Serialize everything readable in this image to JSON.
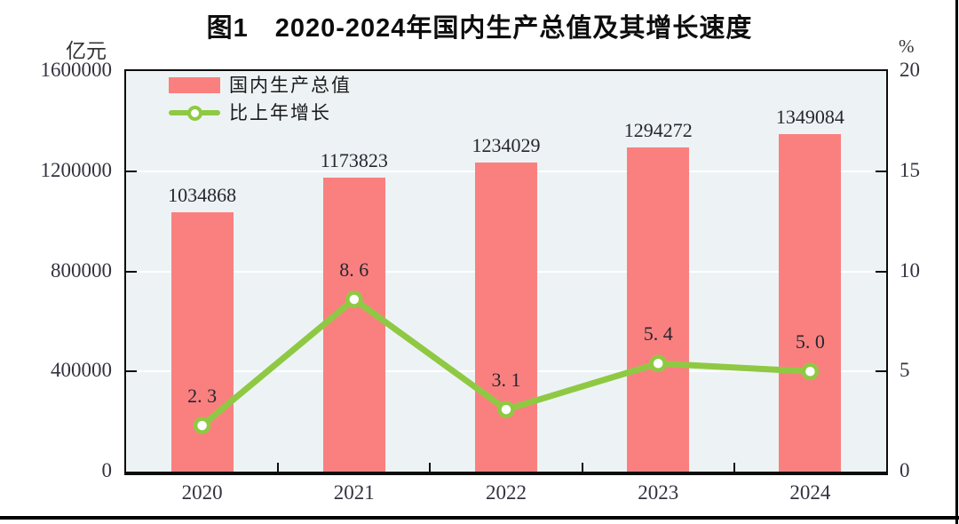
{
  "figure": {
    "title": "图1　2020-2024年国内生产总值及其增长速度",
    "left_axis_unit": "亿元",
    "right_axis_unit": "%"
  },
  "legend": {
    "bar_label": "国内生产总值",
    "line_label": "比上年增长"
  },
  "colors": {
    "bar": "#FA8080",
    "line": "#8FC943",
    "marker_fill": "#FFFFFF",
    "plot_background": "#EDF3F5",
    "gridline": "#FFFFFF",
    "axis_border": "#0d0d0d",
    "label_text": "#333340",
    "title_text": "#0d0d0d"
  },
  "chart_data": {
    "type": "bar+line",
    "title": "图1　2020-2024年国内生产总值及其增长速度",
    "categories": [
      "2020",
      "2021",
      "2022",
      "2023",
      "2024"
    ],
    "series": [
      {
        "name": "国内生产总值",
        "type": "bar",
        "axis": "left",
        "unit": "亿元",
        "values": [
          1034868,
          1173823,
          1234029,
          1294272,
          1349084
        ],
        "data_labels": [
          "1034868",
          "1173823",
          "1234029",
          "1294272",
          "1349084"
        ]
      },
      {
        "name": "比上年增长",
        "type": "line",
        "axis": "right",
        "unit": "%",
        "values": [
          2.3,
          8.6,
          3.1,
          5.4,
          5.0
        ],
        "data_labels": [
          "2. 3",
          "8. 6",
          "3. 1",
          "5. 4",
          "5. 0"
        ]
      }
    ],
    "left_axis": {
      "label": "亿元",
      "ticks": [
        0,
        400000,
        800000,
        1200000,
        1600000
      ],
      "range": [
        0,
        1600000
      ]
    },
    "right_axis": {
      "label": "%",
      "ticks": [
        0,
        5,
        10,
        15,
        20
      ],
      "range": [
        0,
        20
      ]
    },
    "grid": true,
    "legend_position": "top-left"
  }
}
